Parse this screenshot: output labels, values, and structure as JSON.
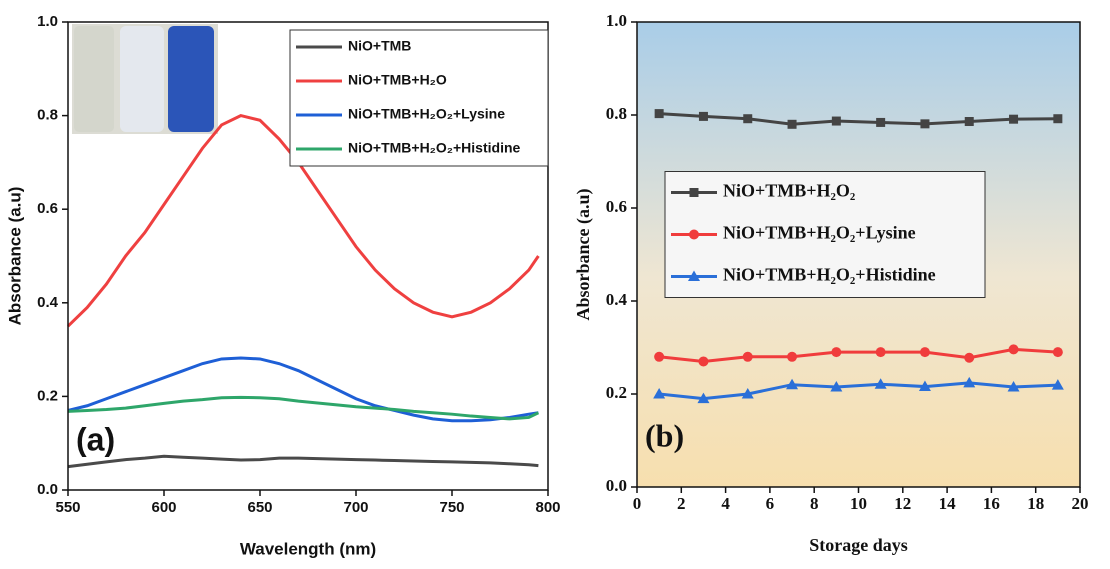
{
  "chart_data": [
    {
      "type": "line",
      "panel_label": "(a)",
      "x_label": "Wavelength (nm)",
      "y_label": "Absorbance (a.u)",
      "x": [
        550,
        560,
        570,
        580,
        590,
        600,
        610,
        620,
        630,
        640,
        650,
        660,
        670,
        680,
        690,
        700,
        710,
        720,
        730,
        740,
        750,
        760,
        770,
        780,
        790,
        795
      ],
      "xlim": [
        550,
        800
      ],
      "xticks": [
        550,
        600,
        650,
        700,
        750,
        800
      ],
      "ylim": [
        0,
        1
      ],
      "yticks": [
        {
          "value": 0,
          "label": "0.0"
        },
        0.2,
        0.4,
        0.6,
        0.8,
        {
          "value": 1,
          "label": "1.0"
        }
      ],
      "legend_position": "upper right",
      "series": [
        {
          "name": "NiO+TMB",
          "color": "#4a4a4a",
          "values": [
            0.05,
            0.055,
            0.06,
            0.065,
            0.068,
            0.072,
            0.07,
            0.068,
            0.066,
            0.064,
            0.065,
            0.068,
            0.068,
            0.067,
            0.066,
            0.065,
            0.064,
            0.063,
            0.062,
            0.061,
            0.06,
            0.059,
            0.058,
            0.056,
            0.054,
            0.052
          ]
        },
        {
          "name": "NiO+TMB+H₂O",
          "color": "#ef4040",
          "values": [
            0.35,
            0.39,
            0.44,
            0.5,
            0.55,
            0.61,
            0.67,
            0.73,
            0.78,
            0.8,
            0.79,
            0.75,
            0.7,
            0.64,
            0.58,
            0.52,
            0.47,
            0.43,
            0.4,
            0.38,
            0.37,
            0.38,
            0.4,
            0.43,
            0.47,
            0.5
          ]
        },
        {
          "name": "NiO+TMB+H₂O₂+Lysine",
          "color": "#1e5fd6",
          "values": [
            0.17,
            0.18,
            0.195,
            0.21,
            0.225,
            0.24,
            0.255,
            0.27,
            0.28,
            0.282,
            0.28,
            0.27,
            0.255,
            0.235,
            0.215,
            0.195,
            0.18,
            0.17,
            0.16,
            0.152,
            0.148,
            0.148,
            0.15,
            0.155,
            0.162,
            0.165
          ]
        },
        {
          "name": "NiO+TMB+H₂O₂+Histidine",
          "color": "#2ea66a",
          "values": [
            0.168,
            0.17,
            0.172,
            0.175,
            0.18,
            0.185,
            0.19,
            0.193,
            0.197,
            0.198,
            0.197,
            0.195,
            0.19,
            0.186,
            0.182,
            0.178,
            0.175,
            0.172,
            0.168,
            0.165,
            0.162,
            0.158,
            0.155,
            0.152,
            0.155,
            0.165
          ]
        }
      ]
    },
    {
      "type": "line",
      "panel_label": "(b)",
      "x_label": "Storage days",
      "y_label": "Absorbance (a.u)",
      "x": [
        1,
        3,
        5,
        7,
        9,
        11,
        13,
        15,
        17,
        19
      ],
      "xlim": [
        0,
        20
      ],
      "xticks": [
        0,
        2,
        4,
        6,
        8,
        10,
        12,
        14,
        16,
        18,
        20
      ],
      "ylim": [
        0,
        1
      ],
      "yticks": [
        {
          "value": 0,
          "label": "0.0"
        },
        0.2,
        0.4,
        0.6,
        0.8,
        {
          "value": 1,
          "label": "1.0"
        }
      ],
      "legend_position": "center left",
      "series": [
        {
          "name": "NiO+TMB+H₂O₂",
          "color": "#444444",
          "marker": "square",
          "values": [
            0.803,
            0.797,
            0.792,
            0.78,
            0.787,
            0.784,
            0.781,
            0.786,
            0.791,
            0.792
          ]
        },
        {
          "name": "NiO+TMB+H₂O₂+Lysine",
          "color": "#f03c3c",
          "marker": "circle",
          "values": [
            0.28,
            0.27,
            0.28,
            0.28,
            0.29,
            0.29,
            0.29,
            0.278,
            0.296,
            0.29
          ]
        },
        {
          "name": "NiO+TMB+H₂O₂+Histidine",
          "color": "#2a6fd8",
          "marker": "triangle",
          "values": [
            0.2,
            0.19,
            0.2,
            0.22,
            0.215,
            0.221,
            0.216,
            0.224,
            0.215,
            0.219
          ]
        }
      ]
    }
  ]
}
